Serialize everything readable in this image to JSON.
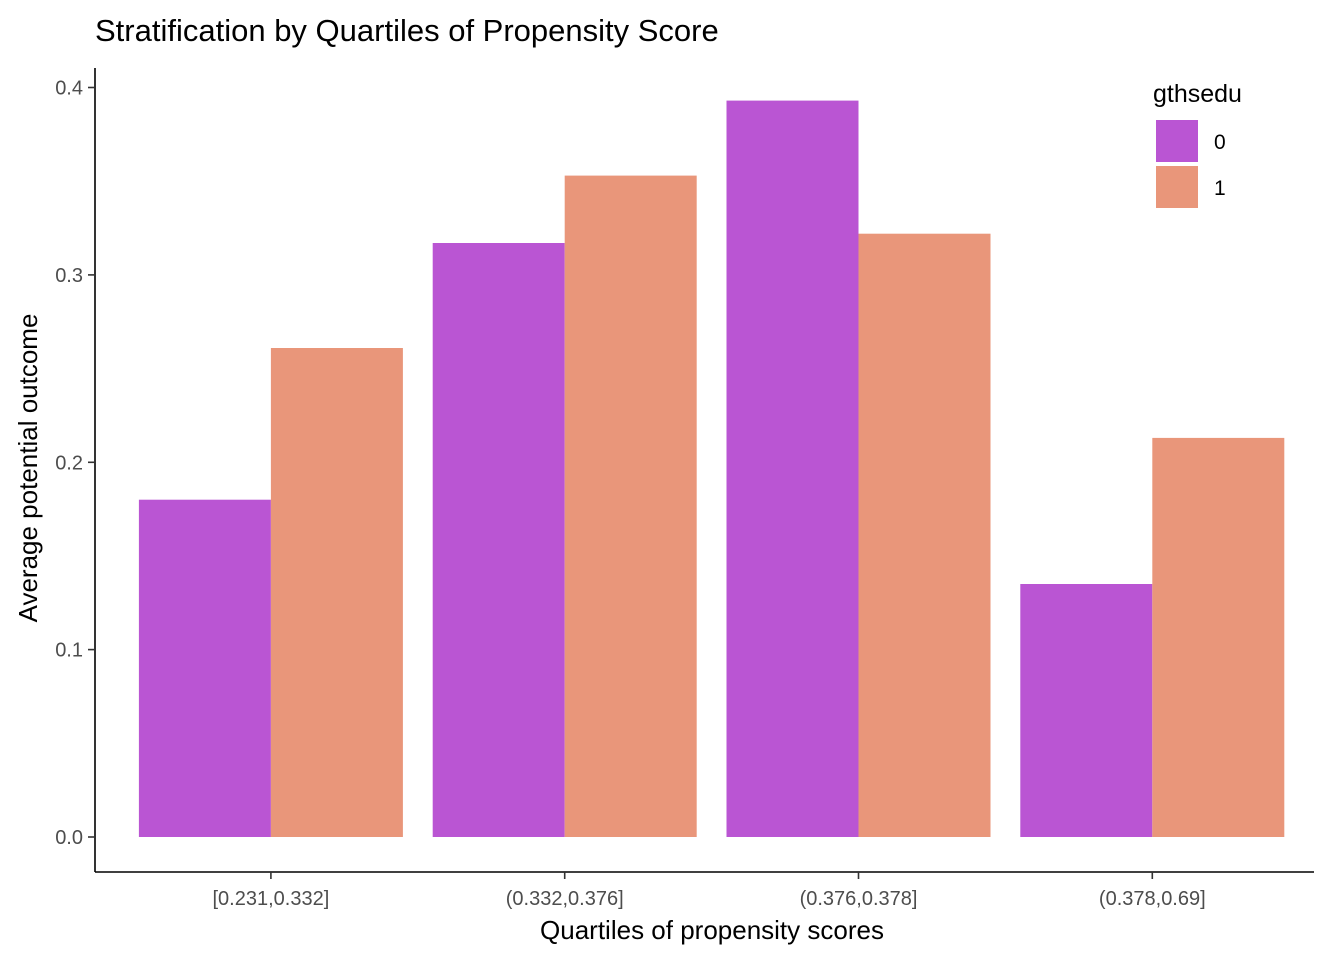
{
  "chart_data": {
    "type": "bar",
    "title": "Stratification by Quartiles of Propensity Score",
    "xlabel": "Quartiles of propensity scores",
    "ylabel": "Average potential outcome",
    "categories": [
      "[0.231,0.332]",
      "(0.332,0.376]",
      "(0.376,0.378]",
      "(0.378,0.69]"
    ],
    "series": [
      {
        "name": "0",
        "color": "#BA55D3",
        "values": [
          0.18,
          0.317,
          0.393,
          0.135
        ]
      },
      {
        "name": "1",
        "color": "#E9967A",
        "values": [
          0.261,
          0.353,
          0.322,
          0.213
        ]
      }
    ],
    "ylim": [
      0,
      0.4
    ],
    "yticks": [
      "0.0",
      "0.1",
      "0.2",
      "0.3",
      "0.4"
    ],
    "ytick_values": [
      0,
      0.1,
      0.2,
      0.3,
      0.4
    ],
    "legend": {
      "title": "gthsedu",
      "placement": "top-right"
    },
    "grid": false
  }
}
